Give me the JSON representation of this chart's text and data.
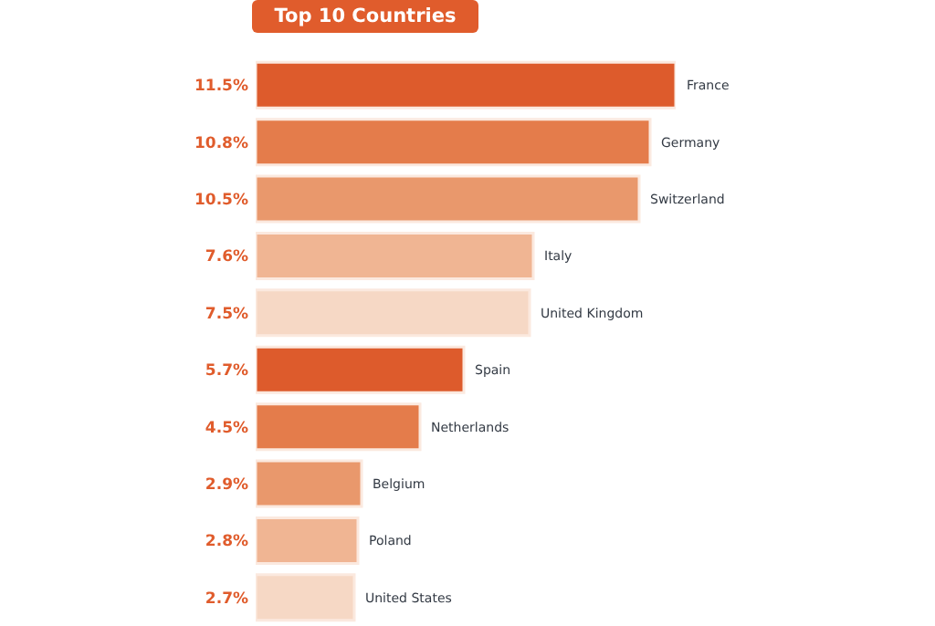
{
  "chart_data": {
    "type": "bar",
    "orientation": "horizontal",
    "title": "Top 10 Countries",
    "categories": [
      "France",
      "Germany",
      "Switzerland",
      "Italy",
      "United Kingdom",
      "Spain",
      "Netherlands",
      "Belgium",
      "Poland",
      "United States"
    ],
    "values": [
      11.5,
      10.8,
      10.5,
      7.6,
      7.5,
      5.7,
      4.5,
      2.9,
      2.8,
      2.7
    ],
    "value_labels": [
      "11.5%",
      "10.8%",
      "10.5%",
      "7.6%",
      "7.5%",
      "5.7%",
      "4.5%",
      "2.9%",
      "2.8%",
      "2.7%"
    ],
    "colors": [
      "#dd5b2c",
      "#e47c4b",
      "#e9986c",
      "#f0b593",
      "#f6d8c5",
      "#dd5b2c",
      "#e47c4b",
      "#e9986c",
      "#f0b593",
      "#f6d8c5"
    ]
  }
}
